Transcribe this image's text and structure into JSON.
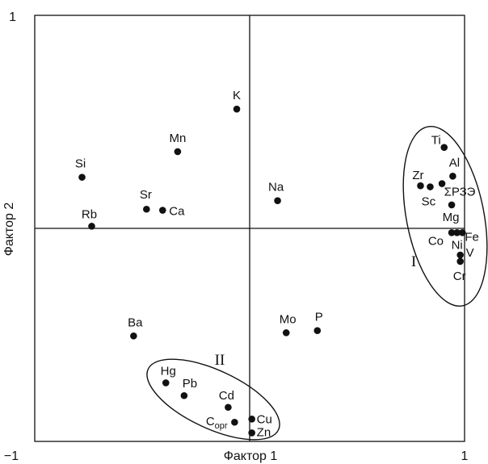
{
  "chart_data": {
    "type": "scatter",
    "xlabel": "Фактор 1",
    "ylabel": "Фактор 2",
    "xlim": [
      -1,
      1
    ],
    "ylim": [
      -1,
      1
    ],
    "x_tick_labels": {
      "min": "−1",
      "max": "1"
    },
    "y_tick_labels": {
      "min": "−1",
      "max": "1"
    },
    "grid": false,
    "points": [
      {
        "label": "K",
        "x": -0.06,
        "y": 0.56
      },
      {
        "label": "Mn",
        "x": -0.335,
        "y": 0.36
      },
      {
        "label": "Si",
        "x": -0.78,
        "y": 0.24
      },
      {
        "label": "Na",
        "x": 0.13,
        "y": 0.13
      },
      {
        "label": "Sr",
        "x": -0.48,
        "y": 0.09
      },
      {
        "label": "Ca",
        "x": -0.405,
        "y": 0.085
      },
      {
        "label": "Rb",
        "x": -0.735,
        "y": 0.01
      },
      {
        "label": "Ti",
        "x": 0.905,
        "y": 0.38
      },
      {
        "label": "Al",
        "x": 0.945,
        "y": 0.245
      },
      {
        "label": "Zr",
        "x": 0.795,
        "y": 0.2
      },
      {
        "label": "Sc",
        "x": 0.84,
        "y": 0.195
      },
      {
        "label": "ΣРЗЭ",
        "x": 0.895,
        "y": 0.21
      },
      {
        "label": "Mg",
        "x": 0.94,
        "y": 0.11
      },
      {
        "label": "Co",
        "x": 0.94,
        "y": -0.02
      },
      {
        "label": "Fe",
        "x": 0.99,
        "y": -0.02
      },
      {
        "label": "Ni",
        "x": 0.965,
        "y": -0.02
      },
      {
        "label": "V",
        "x": 0.98,
        "y": -0.125
      },
      {
        "label": "Cr",
        "x": 0.98,
        "y": -0.155
      },
      {
        "label": "Mo",
        "x": 0.17,
        "y": -0.49
      },
      {
        "label": "P",
        "x": 0.315,
        "y": -0.48
      },
      {
        "label": "Ba",
        "x": -0.54,
        "y": -0.505
      },
      {
        "label": "Hg",
        "x": -0.39,
        "y": -0.725
      },
      {
        "label": "Pb",
        "x": -0.305,
        "y": -0.785
      },
      {
        "label": "Cd",
        "x": -0.1,
        "y": -0.84
      },
      {
        "label": "Copr",
        "x": -0.07,
        "y": -0.91
      },
      {
        "label": "Cu",
        "x": 0.01,
        "y": -0.895
      },
      {
        "label": "Zn",
        "x": 0.01,
        "y": -0.96
      }
    ],
    "groups": [
      {
        "name": "I"
      },
      {
        "name": "II"
      }
    ],
    "copr_label": {
      "main": "C",
      "sub": "орг"
    }
  }
}
